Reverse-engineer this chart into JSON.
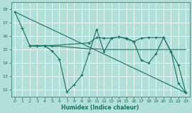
{
  "xlabel": "Humidex (Indice chaleur)",
  "background_color": "#b2e0d8",
  "grid_color": "#ffffff",
  "line_color": "#1a7060",
  "xlim": [
    -0.5,
    23.5
  ],
  "ylim": [
    11.5,
    18.5
  ],
  "yticks": [
    12,
    13,
    14,
    15,
    16,
    17,
    18
  ],
  "xticks": [
    0,
    1,
    2,
    3,
    4,
    5,
    6,
    7,
    8,
    9,
    10,
    11,
    12,
    13,
    14,
    15,
    16,
    17,
    18,
    19,
    20,
    21,
    22,
    23
  ],
  "line1_x": [
    0,
    1,
    2,
    3,
    4,
    5,
    6,
    7,
    8,
    9,
    10,
    11,
    12,
    13,
    14,
    15,
    16,
    17,
    18,
    19,
    20,
    21,
    22,
    23
  ],
  "line1_y": [
    17.8,
    16.6,
    15.3,
    15.25,
    15.3,
    14.9,
    14.3,
    11.85,
    12.4,
    13.1,
    14.75,
    16.5,
    14.85,
    15.85,
    15.95,
    15.8,
    15.6,
    14.2,
    14.0,
    14.7,
    15.9,
    14.85,
    12.5,
    11.8
  ],
  "line2_x": [
    0,
    23
  ],
  "line2_y": [
    17.8,
    11.8
  ],
  "line3_x": [
    2,
    3,
    4,
    5,
    6,
    7,
    8,
    9,
    10,
    11,
    12,
    13,
    14,
    15,
    16,
    17,
    18,
    19,
    20,
    21,
    22,
    23
  ],
  "line3_y": [
    15.3,
    15.3,
    15.3,
    15.25,
    15.25,
    15.2,
    15.15,
    15.1,
    15.05,
    15.05,
    15.0,
    15.0,
    15.0,
    15.0,
    15.0,
    15.0,
    15.0,
    15.0,
    15.0,
    15.0,
    15.0,
    15.0
  ],
  "line4_x": [
    2,
    3,
    4,
    5,
    10,
    11,
    12,
    13,
    14,
    15,
    16,
    17,
    18,
    19,
    20,
    21,
    22,
    23
  ],
  "line4_y": [
    15.3,
    15.25,
    15.3,
    15.3,
    15.5,
    15.9,
    15.85,
    15.85,
    15.95,
    15.85,
    15.6,
    15.85,
    15.9,
    15.9,
    15.9,
    14.85,
    13.85,
    11.8
  ]
}
